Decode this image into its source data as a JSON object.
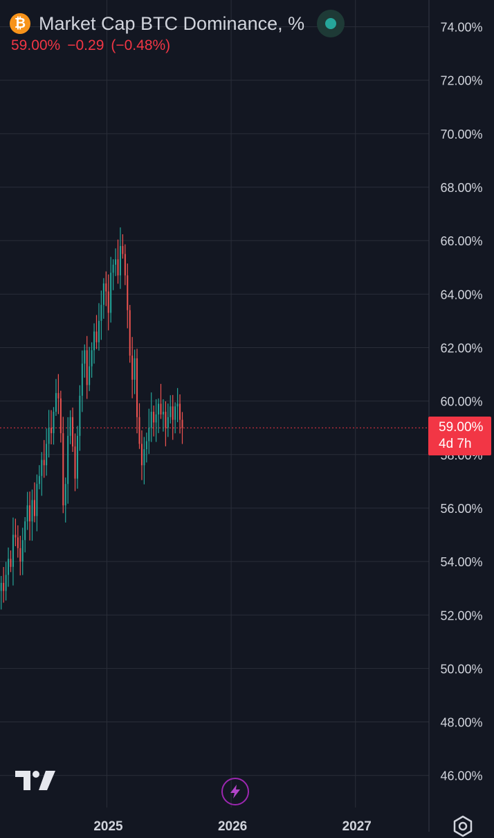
{
  "header": {
    "title": "Market Cap BTC Dominance, %",
    "logo_symbol": "₿",
    "last_value": "59.00%",
    "change": "−0.29",
    "change_percent": "(−0.48%)"
  },
  "price_badge": {
    "value": "59.00%",
    "countdown": "4d 7h"
  },
  "colors": {
    "background": "#131722",
    "grid": "#2a2e39",
    "up": "#26a69a",
    "down": "#ef5350",
    "axis_text": "#d1d4dc",
    "badge": "#f23645",
    "logo": "#f7931a"
  },
  "icons": {
    "brand": "tradingview-logo-icon",
    "bolt": "lightning-bolt-icon",
    "settings": "gear-icon"
  },
  "chart_data": {
    "type": "candlestick",
    "title": "Market Cap BTC Dominance, %",
    "ylim": [
      44.8,
      75.0
    ],
    "y_ticks": [
      "46.00%",
      "48.00%",
      "50.00%",
      "52.00%",
      "54.00%",
      "56.00%",
      "58.00%",
      "60.00%",
      "62.00%",
      "64.00%",
      "66.00%",
      "68.00%",
      "70.00%",
      "72.00%",
      "74.00%"
    ],
    "y_tick_values": [
      46,
      48,
      50,
      52,
      54,
      56,
      58,
      60,
      62,
      64,
      66,
      68,
      70,
      72,
      74
    ],
    "x_ticks": [
      "2025",
      "2026",
      "2027"
    ],
    "x_tick_dates": [
      "2025-01-01",
      "2026-01-01",
      "2027-01-01"
    ],
    "xlim": [
      "2024-02-22",
      "2027-08-05"
    ],
    "grid": true,
    "last_price_line": 59.0,
    "weekly_closes": [
      53.2,
      52.9,
      53.5,
      54.1,
      53.8,
      55.0,
      54.9,
      54.5,
      54.0,
      54.8,
      55.5,
      56.1,
      55.5,
      56.3,
      55.7,
      56.9,
      57.2,
      57.8,
      57.6,
      58.4,
      59.0,
      58.8,
      59.6,
      60.3,
      60.1,
      58.8,
      56.1,
      56.9,
      58.7,
      59.4,
      58.3,
      57.1,
      58.7,
      60.2,
      61.4,
      61.9,
      60.6,
      61.3,
      61.9,
      62.6,
      62.2,
      63.0,
      63.6,
      64.4,
      64.1,
      63.3,
      64.8,
      65.1,
      65.3,
      64.7,
      65.8,
      65.5,
      64.7,
      63.4,
      61.7,
      60.8,
      61.6,
      59.4,
      58.4,
      57.6,
      58.2,
      58.5,
      59.0,
      59.6,
      59.2,
      59.5,
      59.9,
      59.5,
      59.6,
      59.0,
      59.4,
      59.8,
      59.3,
      59.8,
      59.9,
      59.3,
      59.0
    ]
  }
}
